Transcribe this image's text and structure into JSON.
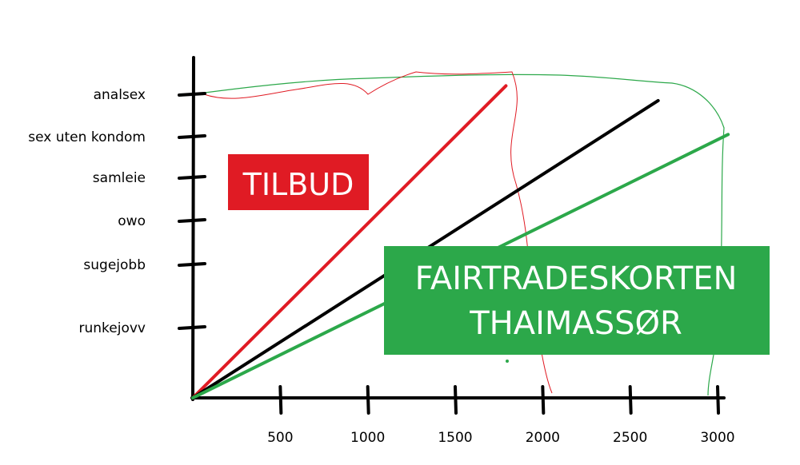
{
  "chart_data": {
    "type": "line",
    "title": "",
    "xlabel": "",
    "ylabel": "",
    "xlim": [
      0,
      3100
    ],
    "x_ticks": [
      500,
      1000,
      1500,
      2000,
      2500,
      3000
    ],
    "y_categories": [
      "runkejovv",
      "sugejobb",
      "owo",
      "samleie",
      "sex uten kondom",
      "analsex"
    ],
    "series": [
      {
        "color": "#e01b24",
        "points": [
          [
            0,
            0
          ],
          [
            1790,
            6.2
          ]
        ]
      },
      {
        "color": "#000000",
        "points": [
          [
            0,
            0
          ],
          [
            2660,
            5.85
          ]
        ]
      },
      {
        "color": "#2ca84a",
        "points": [
          [
            0,
            0
          ],
          [
            3060,
            5.05
          ]
        ]
      }
    ],
    "annotations": [
      {
        "text": "TILBUD",
        "background": "#e01b24"
      },
      {
        "lines": [
          "FAIRTRADESKORTEN",
          "THAIMASSØR"
        ],
        "background": "#2ca84a"
      }
    ]
  }
}
